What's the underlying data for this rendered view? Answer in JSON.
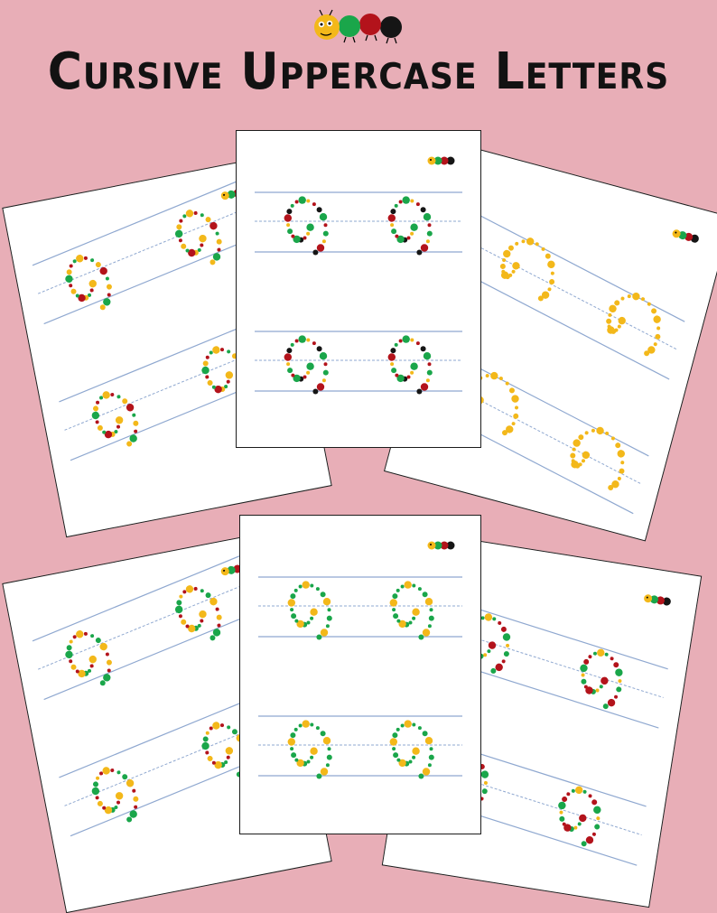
{
  "title": "Cursive Uppercase Letters",
  "colors": {
    "background": "#e8aeb7",
    "yellow": "#f3b81a",
    "green": "#1aa64a",
    "red": "#b3131b",
    "black": "#151515",
    "guide_line": "#8fa8d0"
  },
  "logo": {
    "icon": "caterpillar-icon"
  },
  "worksheets": [
    {
      "id": "top-left",
      "letter_pattern": "A"
    },
    {
      "id": "top-center",
      "letter_pattern": "B"
    },
    {
      "id": "top-right",
      "letter_pattern": "C"
    },
    {
      "id": "bottom-left",
      "letter_pattern": "D"
    },
    {
      "id": "bottom-center",
      "letter_pattern": "E"
    },
    {
      "id": "bottom-right",
      "letter_pattern": "F"
    }
  ]
}
